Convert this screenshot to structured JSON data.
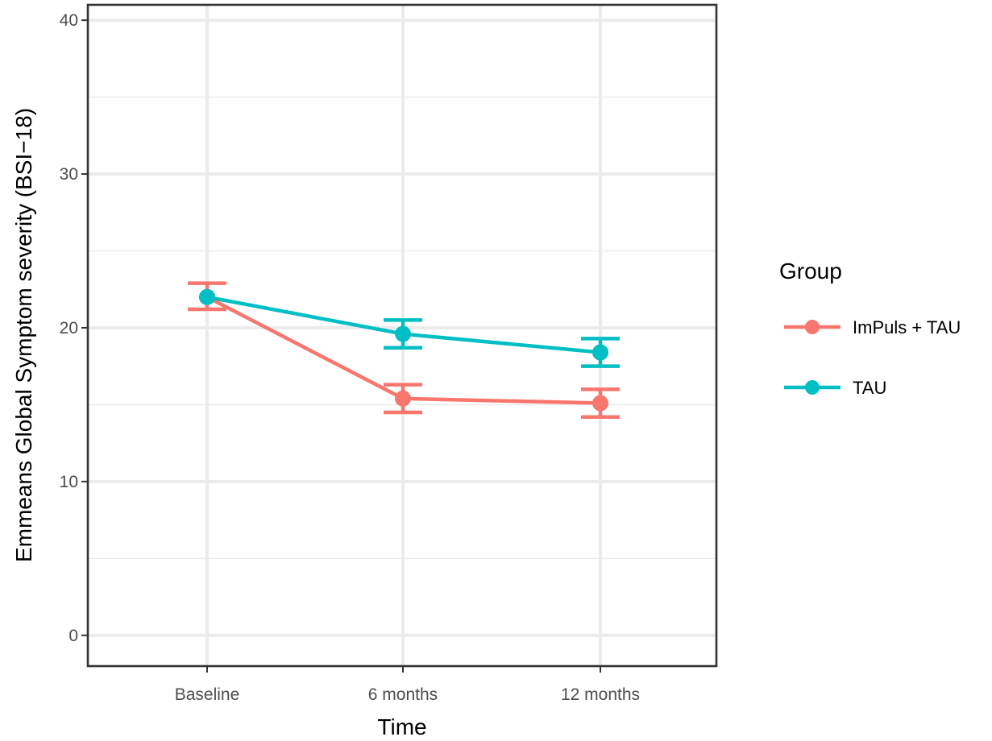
{
  "chart_data": {
    "type": "line",
    "xlabel": "Time",
    "ylabel": "Emmeans Global Symptom severity (BSI−18)",
    "categories": [
      "Baseline",
      "6 months",
      "12 months"
    ],
    "ylim": [
      -2,
      41
    ],
    "yticks": [
      0,
      10,
      20,
      30,
      40
    ],
    "grid": true,
    "legend": {
      "title": "Group",
      "position": "right"
    },
    "series": [
      {
        "name": "ImPuls + TAU",
        "color": "#F8766D",
        "values": [
          22.0,
          15.4,
          15.1
        ],
        "error_low": [
          21.2,
          14.5,
          14.2
        ],
        "error_high": [
          22.9,
          16.3,
          16.0
        ]
      },
      {
        "name": "TAU",
        "color": "#00BFC4",
        "values": [
          22.0,
          19.6,
          18.4
        ],
        "error_low": [
          22.0,
          18.7,
          17.5
        ],
        "error_high": [
          22.0,
          20.5,
          19.3
        ]
      }
    ]
  }
}
